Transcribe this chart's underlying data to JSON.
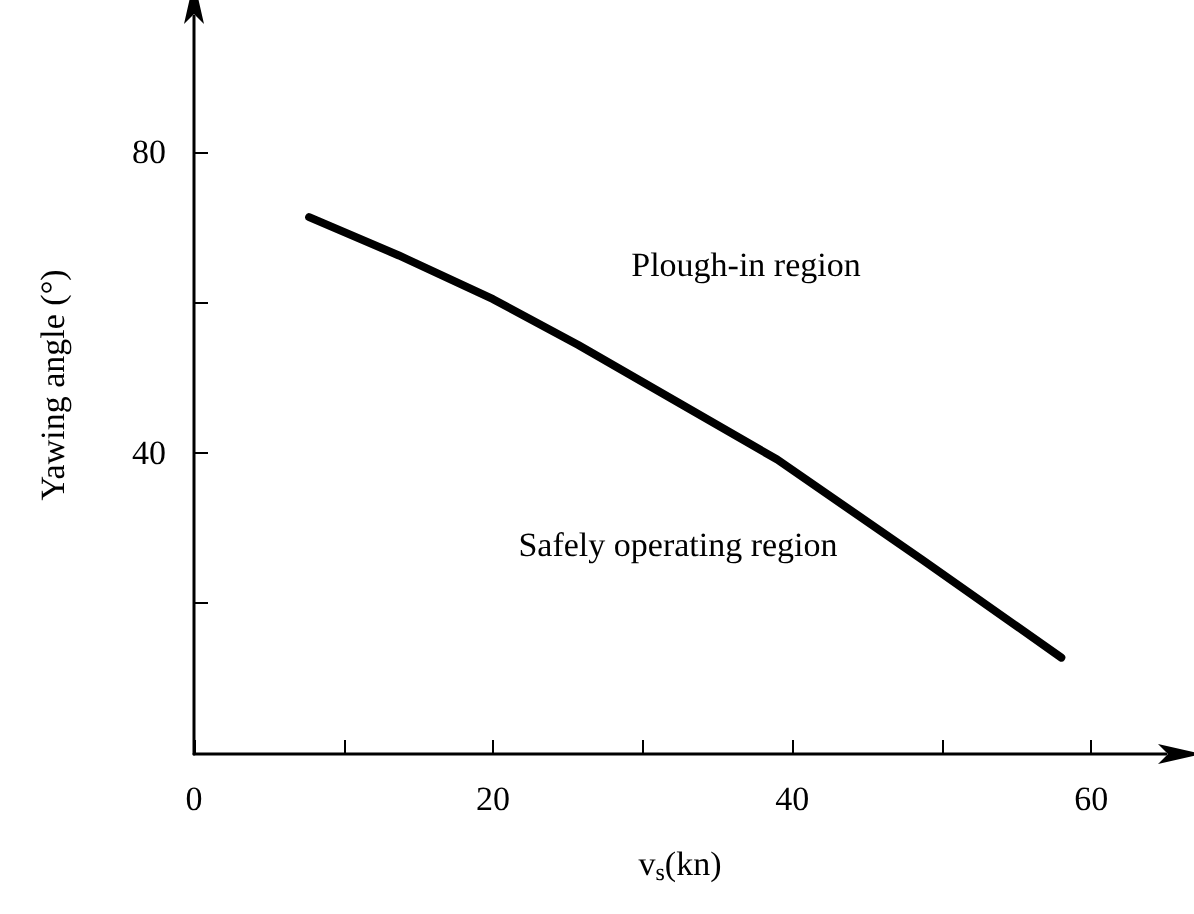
{
  "chart_data": {
    "type": "line",
    "xlabel": "v$_{s}$(kn)",
    "ylabel": "Yawing angle (°)",
    "x": [
      7.7,
      13.7,
      20,
      25.7,
      32.7,
      39,
      48.7,
      58
    ],
    "series": [
      {
        "color": "#000000",
        "values": [
          71.3,
          66.2,
          60.4,
          54.3,
          46.3,
          39.1,
          25.8,
          12.8
        ]
      }
    ],
    "xlim": [
      0,
      65
    ],
    "ylim": [
      0,
      98
    ],
    "xticks": [
      0,
      {
        "value": 10,
        "label": null
      },
      20,
      {
        "value": 30,
        "label": null
      },
      40,
      {
        "value": 50,
        "label": null
      },
      60
    ],
    "yticks": [
      {
        "value": 20,
        "label": null
      },
      40,
      {
        "value": 60,
        "label": null
      },
      80
    ],
    "annotations": [
      "Plough-in region",
      "Safely operating region"
    ],
    "grid": false,
    "marker": "none",
    "line_style": "solid"
  }
}
